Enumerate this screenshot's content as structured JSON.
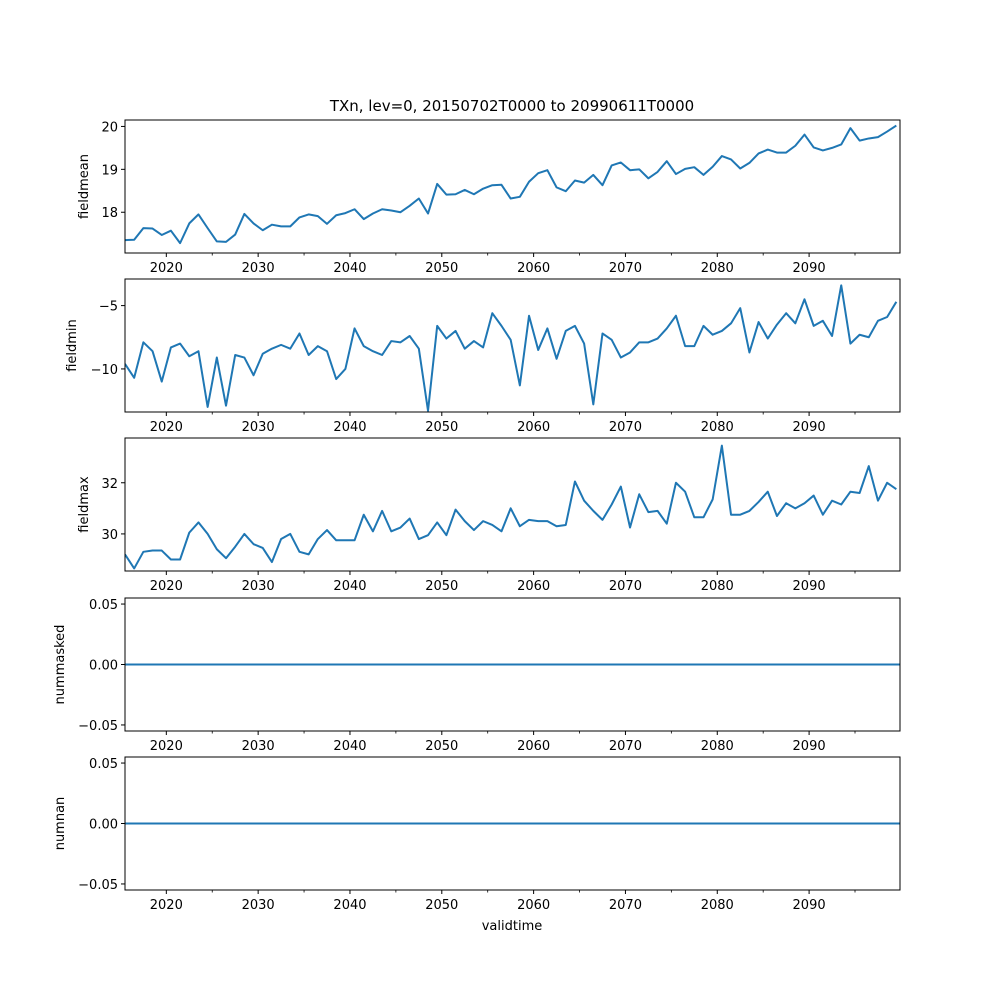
{
  "chart_data": {
    "type": "line",
    "title": "TXn, lev=0, 20150702T0000 to 20990611T0000",
    "xlabel": "validtime",
    "x_ticks": [
      2020,
      2030,
      2040,
      2050,
      2060,
      2070,
      2080,
      2090
    ],
    "x_range": [
      2015.5,
      2099.9
    ],
    "line_color": "#1f77b4",
    "panels": [
      {
        "ylabel": "fieldmean",
        "ylim": [
          17.05,
          20.15
        ],
        "y_ticks": [
          18,
          19,
          20
        ],
        "y_tick_labels": [
          "18",
          "19",
          "20"
        ],
        "x": [
          2015.5,
          2016.5,
          2017.5,
          2018.5,
          2019.5,
          2020.5,
          2021.5,
          2022.5,
          2023.5,
          2024.5,
          2025.5,
          2026.5,
          2027.5,
          2028.5,
          2029.5,
          2030.5,
          2031.5,
          2032.5,
          2033.5,
          2034.5,
          2035.5,
          2036.5,
          2037.5,
          2038.5,
          2039.5,
          2040.5,
          2041.5,
          2042.5,
          2043.5,
          2044.5,
          2045.5,
          2046.5,
          2047.5,
          2048.5,
          2049.5,
          2050.5,
          2051.5,
          2052.5,
          2053.5,
          2054.5,
          2055.5,
          2056.5,
          2057.5,
          2058.5,
          2059.5,
          2060.5,
          2061.5,
          2062.5,
          2063.5,
          2064.5,
          2065.5,
          2066.5,
          2067.5,
          2068.5,
          2069.5,
          2070.5,
          2071.5,
          2072.5,
          2073.5,
          2074.5,
          2075.5,
          2076.5,
          2077.5,
          2078.5,
          2079.5,
          2080.5,
          2081.5,
          2082.5,
          2083.5,
          2084.5,
          2085.5,
          2086.5,
          2087.5,
          2088.5,
          2089.5,
          2090.5,
          2091.5,
          2092.5,
          2093.5,
          2094.5,
          2095.5,
          2096.5,
          2097.5,
          2098.5,
          2099.5
        ],
        "values": [
          17.35,
          17.36,
          17.63,
          17.62,
          17.47,
          17.57,
          17.28,
          17.74,
          17.95,
          17.63,
          17.32,
          17.31,
          17.48,
          17.96,
          17.74,
          17.58,
          17.71,
          17.67,
          17.67,
          17.88,
          17.95,
          17.91,
          17.73,
          17.93,
          17.98,
          18.07,
          17.84,
          17.97,
          18.07,
          18.04,
          18.0,
          18.15,
          18.32,
          17.97,
          18.66,
          18.41,
          18.42,
          18.52,
          18.42,
          18.55,
          18.63,
          18.64,
          18.32,
          18.36,
          18.71,
          18.91,
          18.98,
          18.58,
          18.49,
          18.74,
          18.69,
          18.87,
          18.63,
          19.09,
          19.16,
          18.98,
          19.0,
          18.79,
          18.94,
          19.19,
          18.89,
          19.01,
          19.05,
          18.87,
          19.06,
          19.31,
          19.23,
          19.02,
          19.15,
          19.37,
          19.46,
          19.39,
          19.39,
          19.55,
          19.81,
          19.51,
          19.44,
          19.5,
          19.58,
          19.96,
          19.67,
          19.72,
          19.75,
          19.88,
          20.02
        ]
      },
      {
        "ylabel": "fieldmin",
        "ylim": [
          -13.4,
          -2.9
        ],
        "y_ticks": [
          -10,
          -5
        ],
        "y_tick_labels": [
          "−10",
          "−5"
        ],
        "x": [
          2015.5,
          2016.5,
          2017.5,
          2018.5,
          2019.5,
          2020.5,
          2021.5,
          2022.5,
          2023.5,
          2024.5,
          2025.5,
          2026.5,
          2027.5,
          2028.5,
          2029.5,
          2030.5,
          2031.5,
          2032.5,
          2033.5,
          2034.5,
          2035.5,
          2036.5,
          2037.5,
          2038.5,
          2039.5,
          2040.5,
          2041.5,
          2042.5,
          2043.5,
          2044.5,
          2045.5,
          2046.5,
          2047.5,
          2048.5,
          2049.5,
          2050.5,
          2051.5,
          2052.5,
          2053.5,
          2054.5,
          2055.5,
          2056.5,
          2057.5,
          2058.5,
          2059.5,
          2060.5,
          2061.5,
          2062.5,
          2063.5,
          2064.5,
          2065.5,
          2066.5,
          2067.5,
          2068.5,
          2069.5,
          2070.5,
          2071.5,
          2072.5,
          2073.5,
          2074.5,
          2075.5,
          2076.5,
          2077.5,
          2078.5,
          2079.5,
          2080.5,
          2081.5,
          2082.5,
          2083.5,
          2084.5,
          2085.5,
          2086.5,
          2087.5,
          2088.5,
          2089.5,
          2090.5,
          2091.5,
          2092.5,
          2093.5,
          2094.5,
          2095.5,
          2096.5,
          2097.5,
          2098.5,
          2099.5
        ],
        "values": [
          -9.6,
          -10.7,
          -7.9,
          -8.6,
          -11.0,
          -8.3,
          -8.0,
          -9.0,
          -8.6,
          -13.0,
          -9.1,
          -12.9,
          -8.9,
          -9.1,
          -10.5,
          -8.8,
          -8.4,
          -8.1,
          -8.4,
          -7.2,
          -8.9,
          -8.2,
          -8.6,
          -10.8,
          -10.0,
          -6.8,
          -8.2,
          -8.6,
          -8.9,
          -7.8,
          -7.9,
          -7.4,
          -8.4,
          -13.3,
          -6.6,
          -7.6,
          -7.0,
          -8.4,
          -7.8,
          -8.3,
          -5.6,
          -6.6,
          -7.7,
          -11.3,
          -5.8,
          -8.5,
          -6.8,
          -9.2,
          -7.0,
          -6.6,
          -8.0,
          -12.8,
          -7.2,
          -7.7,
          -9.1,
          -8.7,
          -7.9,
          -7.9,
          -7.6,
          -6.8,
          -5.8,
          -8.2,
          -8.2,
          -6.6,
          -7.3,
          -7.0,
          -6.4,
          -5.2,
          -8.7,
          -6.3,
          -7.6,
          -6.5,
          -5.6,
          -6.4,
          -4.5,
          -6.6,
          -6.2,
          -7.4,
          -3.4,
          -8.0,
          -7.3,
          -7.5,
          -6.2,
          -5.9,
          -4.7
        ]
      },
      {
        "ylabel": "fieldmax",
        "ylim": [
          28.55,
          33.75
        ],
        "y_ticks": [
          30,
          32
        ],
        "y_tick_labels": [
          "30",
          "32"
        ],
        "x": [
          2015.5,
          2016.5,
          2017.5,
          2018.5,
          2019.5,
          2020.5,
          2021.5,
          2022.5,
          2023.5,
          2024.5,
          2025.5,
          2026.5,
          2027.5,
          2028.5,
          2029.5,
          2030.5,
          2031.5,
          2032.5,
          2033.5,
          2034.5,
          2035.5,
          2036.5,
          2037.5,
          2038.5,
          2039.5,
          2040.5,
          2041.5,
          2042.5,
          2043.5,
          2044.5,
          2045.5,
          2046.5,
          2047.5,
          2048.5,
          2049.5,
          2050.5,
          2051.5,
          2052.5,
          2053.5,
          2054.5,
          2055.5,
          2056.5,
          2057.5,
          2058.5,
          2059.5,
          2060.5,
          2061.5,
          2062.5,
          2063.5,
          2064.5,
          2065.5,
          2066.5,
          2067.5,
          2068.5,
          2069.5,
          2070.5,
          2071.5,
          2072.5,
          2073.5,
          2074.5,
          2075.5,
          2076.5,
          2077.5,
          2078.5,
          2079.5,
          2080.5,
          2081.5,
          2082.5,
          2083.5,
          2084.5,
          2085.5,
          2086.5,
          2087.5,
          2088.5,
          2089.5,
          2090.5,
          2091.5,
          2092.5,
          2093.5,
          2094.5,
          2095.5,
          2096.5,
          2097.5,
          2098.5,
          2099.5
        ],
        "values": [
          29.2,
          28.65,
          29.3,
          29.35,
          29.35,
          29.0,
          29.0,
          30.05,
          30.45,
          30.0,
          29.4,
          29.05,
          29.5,
          30.0,
          29.6,
          29.45,
          28.9,
          29.8,
          30.0,
          29.3,
          29.2,
          29.8,
          30.15,
          29.75,
          29.75,
          29.75,
          30.75,
          30.1,
          30.9,
          30.1,
          30.25,
          30.6,
          29.8,
          29.95,
          30.45,
          29.95,
          30.95,
          30.5,
          30.15,
          30.5,
          30.35,
          30.1,
          31.0,
          30.3,
          30.55,
          30.5,
          30.5,
          30.3,
          30.35,
          32.05,
          31.3,
          30.9,
          30.55,
          31.15,
          31.85,
          30.25,
          31.55,
          30.85,
          30.9,
          30.4,
          32.0,
          31.65,
          30.65,
          30.65,
          31.35,
          33.45,
          30.75,
          30.75,
          30.9,
          31.25,
          31.65,
          30.7,
          31.2,
          31.0,
          31.2,
          31.5,
          30.75,
          31.3,
          31.15,
          31.65,
          31.6,
          32.65,
          31.3,
          32.0,
          31.75
        ]
      },
      {
        "ylabel": "nummasked",
        "ylim": [
          -0.055,
          0.055
        ],
        "y_ticks": [
          -0.05,
          0.0,
          0.05
        ],
        "y_tick_labels": [
          "−0.05",
          "0.00",
          "0.05"
        ],
        "x": [
          2015.5,
          2099.9
        ],
        "values": [
          0,
          0
        ]
      },
      {
        "ylabel": "numnan",
        "ylim": [
          -0.055,
          0.055
        ],
        "y_ticks": [
          -0.05,
          0.0,
          0.05
        ],
        "y_tick_labels": [
          "−0.05",
          "0.00",
          "0.05"
        ],
        "x": [
          2015.5,
          2099.9
        ],
        "values": [
          0,
          0
        ]
      }
    ]
  }
}
